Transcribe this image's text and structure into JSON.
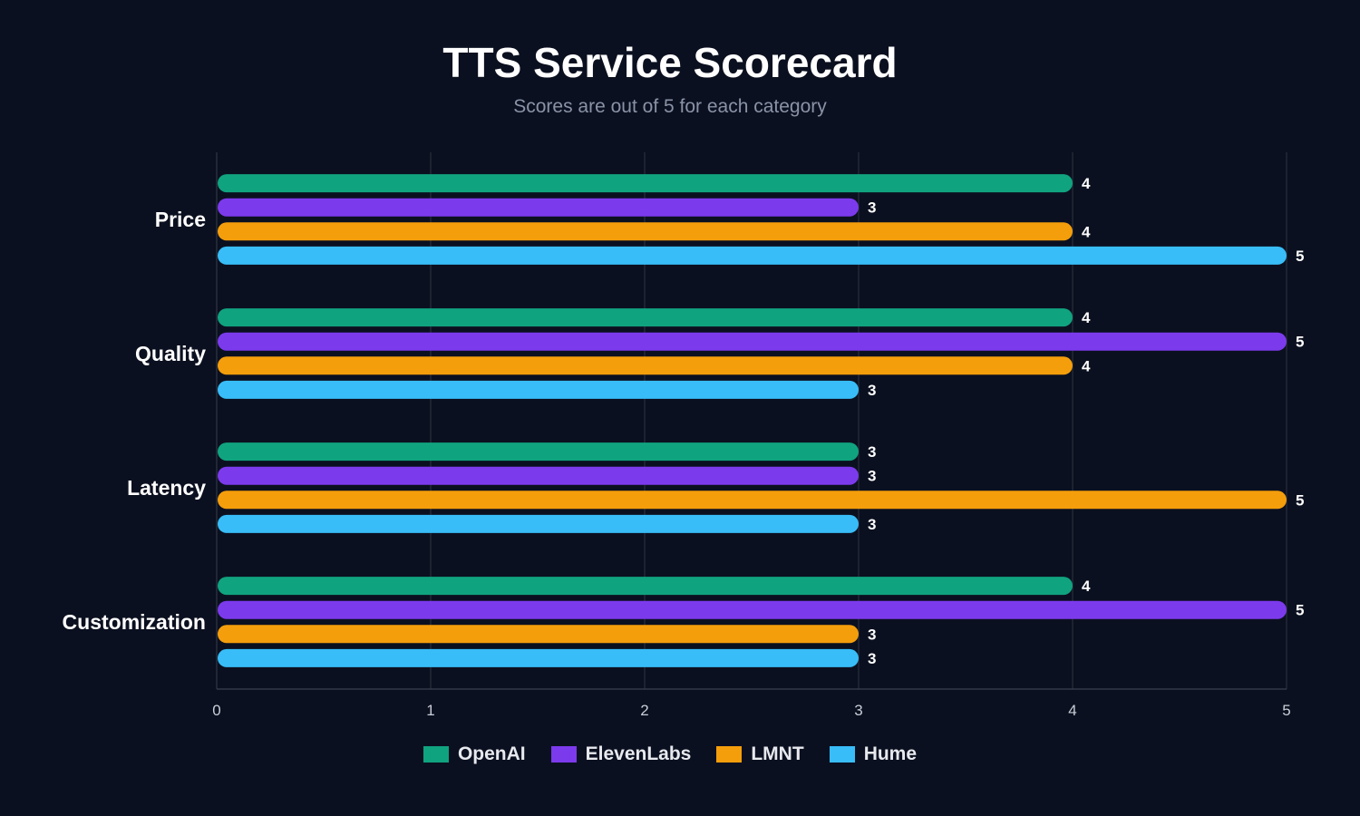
{
  "colors": {
    "background": "#0b1020",
    "grid": "#2a2f3d",
    "axis": "#3a4050",
    "text": "#ffffff",
    "tick_text": "#c9ced8",
    "subtitle": "#8a93a6"
  },
  "chart_data": {
    "type": "bar",
    "orientation": "horizontal",
    "title": "TTS Service Scorecard",
    "subtitle": "Scores are out of 5 for each category",
    "categories": [
      "Price",
      "Quality",
      "Latency",
      "Customization"
    ],
    "xlim": [
      0,
      5
    ],
    "xticks": [
      0,
      1,
      2,
      3,
      4,
      5
    ],
    "grid": true,
    "legend_position": "bottom-center",
    "data_labels": true,
    "series": [
      {
        "name": "OpenAI",
        "color": "#10a37f",
        "values": [
          4,
          4,
          3,
          4
        ]
      },
      {
        "name": "ElevenLabs",
        "color": "#7c3aed",
        "values": [
          3,
          5,
          3,
          5
        ]
      },
      {
        "name": "LMNT",
        "color": "#f59e0b",
        "values": [
          4,
          4,
          5,
          3
        ]
      },
      {
        "name": "Hume",
        "color": "#38bdf8",
        "values": [
          5,
          3,
          3,
          3
        ]
      }
    ]
  }
}
